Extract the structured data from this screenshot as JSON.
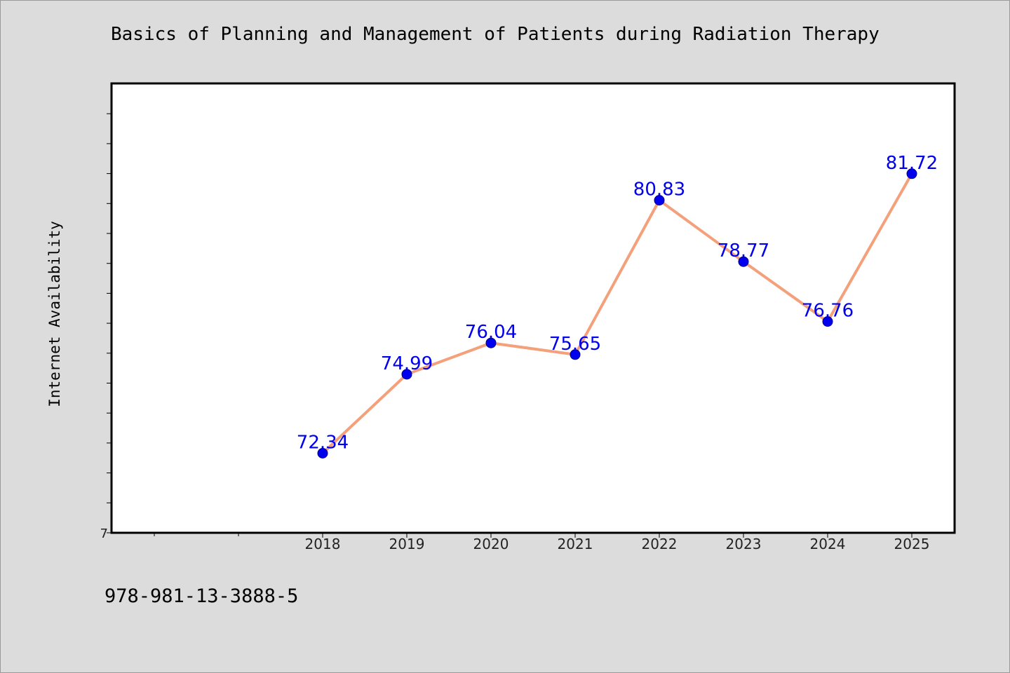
{
  "chart_data": {
    "type": "line",
    "title": "Basics of Planning and Management of Patients during Radiation Therapy",
    "xlabel": "",
    "ylabel": "Internet Availability",
    "categories": [
      "2018",
      "2019",
      "2020",
      "2021",
      "2022",
      "2023",
      "2024",
      "2025"
    ],
    "series": [
      {
        "values": [
          72.34,
          74.99,
          76.04,
          75.65,
          80.83,
          78.77,
          76.76,
          81.72
        ],
        "data_labels": [
          "72.34",
          "74.99",
          "76.04",
          "75.65",
          "80.83",
          "78.77",
          "76.76",
          "81.72"
        ],
        "line_color": "#f4a07a",
        "marker_color": "#0000ee"
      }
    ],
    "ylim": [
      69.67,
      84.75
    ],
    "y_tick_labels": [
      "7"
    ],
    "grid": false,
    "legend": "none",
    "plot_background": "#ffffff",
    "figure_background": "#dcdcdc"
  },
  "footer": {
    "isbn": "978-981-13-3888-5"
  }
}
